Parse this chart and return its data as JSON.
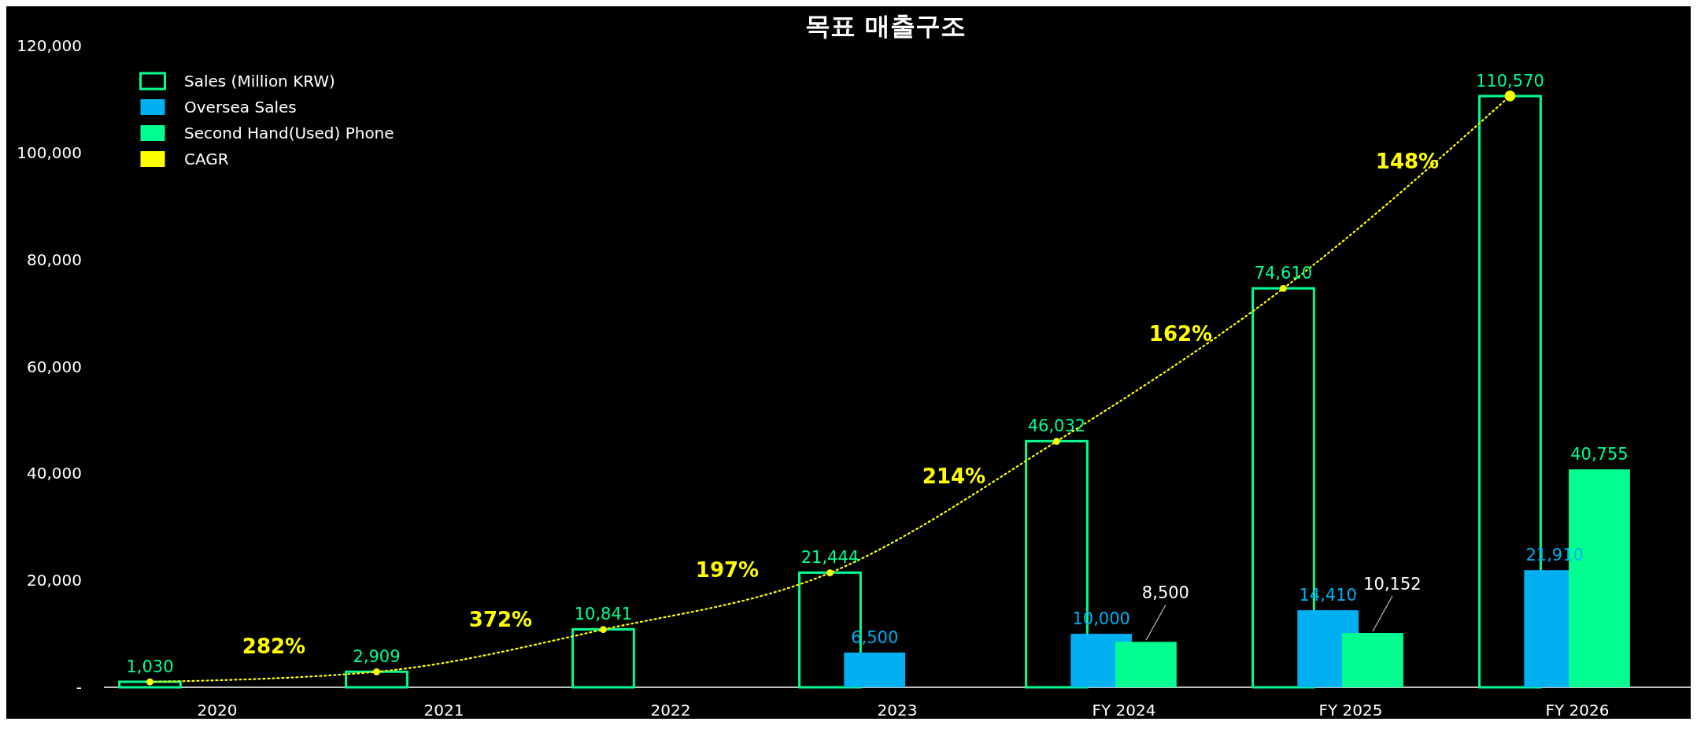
{
  "chart_data": {
    "type": "bar",
    "title": "목표 매출구조",
    "categories": [
      "2020",
      "2021",
      "2022",
      "2023",
      "FY 2024",
      "FY 2025",
      "FY 2026"
    ],
    "series": [
      {
        "name": "Sales (Million KRW)",
        "color": "#00ff90",
        "values": [
          1030,
          2909,
          10841,
          21444,
          46032,
          74610,
          110570
        ],
        "value_labels": [
          "1,030",
          "2,909",
          "10,841",
          "21,444",
          "46,032",
          "74,610",
          "110,570"
        ]
      },
      {
        "name": "Oversea Sales",
        "color": "#00b0f0",
        "values": [
          null,
          null,
          null,
          6500,
          10000,
          14410,
          21910
        ],
        "value_labels": [
          null,
          null,
          null,
          "6,500",
          "10,000",
          "14,410",
          "21,910"
        ]
      },
      {
        "name": "Second Hand(Used) Phone",
        "color": "#00ff90",
        "values": [
          null,
          null,
          null,
          null,
          8500,
          10152,
          40755
        ],
        "value_labels": [
          null,
          null,
          null,
          null,
          "8,500",
          "10,152",
          "40,755"
        ]
      },
      {
        "name": "CAGR",
        "type": "line",
        "color": "#ffff00",
        "line_style": "dotted",
        "marker": "circle",
        "values": [
          1000,
          2900,
          10800,
          21400,
          46000,
          74600,
          110600
        ]
      }
    ],
    "ylim": [
      0,
      120000
    ],
    "yticks": [
      {
        "value": 0,
        "label": "-"
      },
      {
        "value": 20000,
        "label": "20,000"
      },
      {
        "value": 40000,
        "label": "40,000"
      },
      {
        "value": 60000,
        "label": "60,000"
      },
      {
        "value": 80000,
        "label": "80,000"
      },
      {
        "value": 100000,
        "label": "100,000"
      },
      {
        "value": 120000,
        "label": "120,000"
      }
    ],
    "annotations": [
      "282%",
      "372%",
      "197%",
      "214%",
      "162%",
      "148%"
    ],
    "grid": false,
    "legend": "top left"
  }
}
